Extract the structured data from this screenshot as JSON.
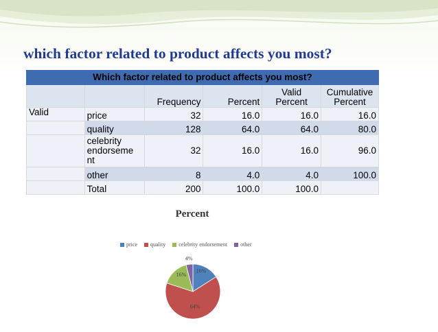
{
  "slide": {
    "title": "which factor related to product affects you most?"
  },
  "table": {
    "caption": "Which factor related to product affects you most?",
    "headers": [
      "Frequency",
      "Percent",
      "Valid Percent",
      "Cumulative Percent"
    ],
    "headers_lines": [
      [
        "Frequency"
      ],
      [
        "Percent"
      ],
      [
        "Valid",
        "Percent"
      ],
      [
        "Cumulative",
        "Percent"
      ]
    ],
    "group_label": "Valid",
    "rows": [
      {
        "label": "price",
        "label_lines": [
          "price"
        ],
        "frequency": "32",
        "percent": "16.0",
        "valid_percent": "16.0",
        "cumulative_percent": "16.0"
      },
      {
        "label": "quality",
        "label_lines": [
          "quality"
        ],
        "frequency": "128",
        "percent": "64.0",
        "valid_percent": "64.0",
        "cumulative_percent": "80.0"
      },
      {
        "label": "celebrity endorsement",
        "label_lines": [
          "celebrity",
          "endorseme",
          "nt"
        ],
        "frequency": "32",
        "percent": "16.0",
        "valid_percent": "16.0",
        "cumulative_percent": "96.0"
      },
      {
        "label": "other",
        "label_lines": [
          "other"
        ],
        "frequency": "8",
        "percent": "4.0",
        "valid_percent": "4.0",
        "cumulative_percent": "100.0"
      },
      {
        "label": "Total",
        "label_lines": [
          "Total"
        ],
        "frequency": "200",
        "percent": "100.0",
        "valid_percent": "100.0",
        "cumulative_percent": ""
      }
    ]
  },
  "chart_data": {
    "type": "pie",
    "title": "Percent",
    "categories": [
      "price",
      "quality",
      "celebrity endorsement",
      "other"
    ],
    "values": [
      16,
      64,
      16,
      4
    ],
    "data_labels": [
      "16%",
      "64%",
      "16%",
      "4%"
    ],
    "colors": [
      "#4f81bd",
      "#c0504d",
      "#9bbb59",
      "#8064a2"
    ],
    "legend_position": "top"
  },
  "theme": {
    "title_color": "#1f3a93",
    "table_caption_bg": "#3f6cb0",
    "table_header_bg": "#dce4ef",
    "row_light_bg": "#eef2f8",
    "row_dark_bg": "#d0daea"
  }
}
